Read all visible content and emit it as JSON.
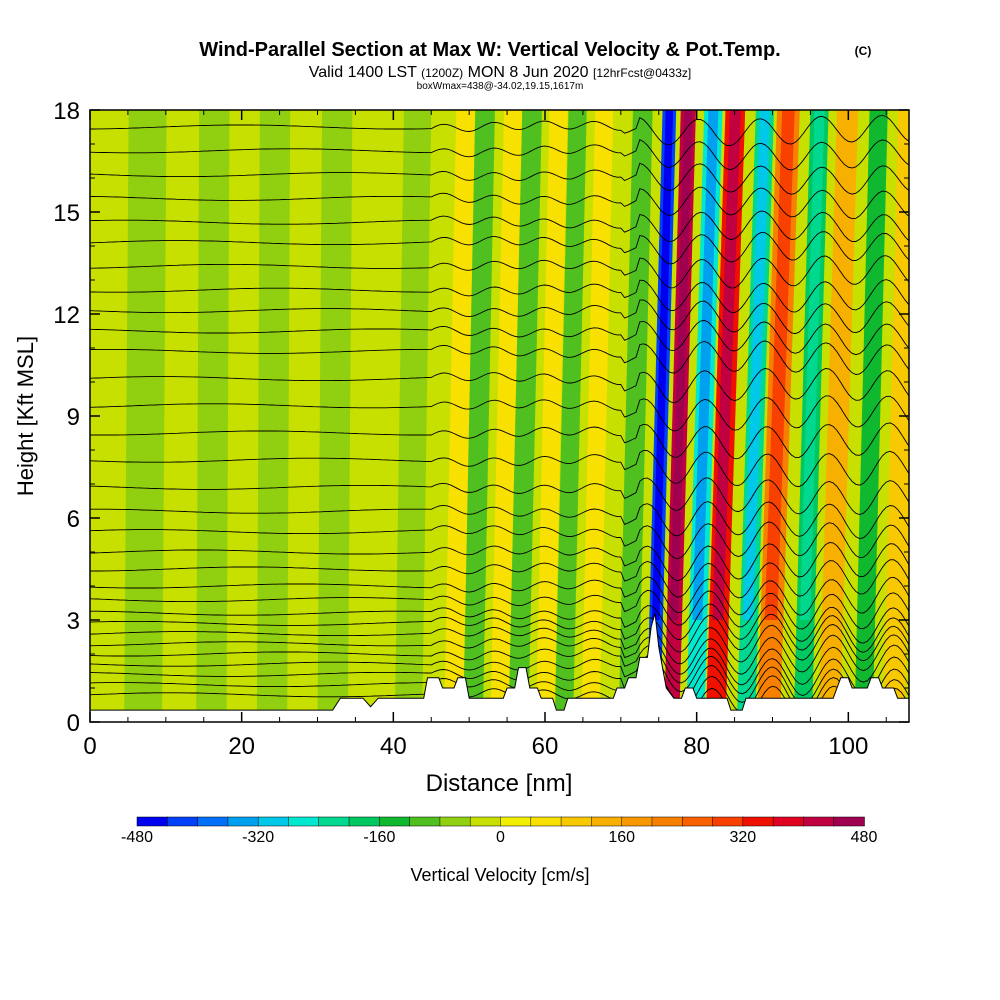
{
  "header": {
    "title": "Wind-Parallel Section at Max W: Vertical Velocity & Pot.Temp.",
    "copyright": "(C)",
    "valid_prefix": "Valid 1400 LST",
    "valid_utc": "(1200Z)",
    "valid_date": "MON 8 Jun 2020",
    "forecast": "[12hrFcst@0433z]",
    "box_info": "boxWmax=438@-34.02,19.15,1617m"
  },
  "chart_data": {
    "type": "heatmap",
    "title": "Wind-Parallel Section at Max W: Vertical Velocity & Pot.Temp.",
    "xlabel": "Distance [nm]",
    "ylabel": "Height [Kft MSL]",
    "xlim": [
      0,
      108
    ],
    "ylim": [
      0,
      18
    ],
    "x_ticks": [
      "0",
      "20",
      "40",
      "60",
      "80",
      "100"
    ],
    "x_tick_values": [
      0,
      20,
      40,
      60,
      80,
      100
    ],
    "y_ticks": [
      "0",
      "3",
      "6",
      "9",
      "12",
      "15",
      "18"
    ],
    "y_tick_values": [
      0,
      3,
      6,
      9,
      12,
      15,
      18
    ],
    "colorbar": {
      "label": "Vertical Velocity [cm/s]",
      "min": -480,
      "max": 480,
      "step": 40,
      "tick_labels": [
        "-480",
        "-320",
        "-160",
        "0",
        "160",
        "320",
        "480"
      ],
      "tick_values": [
        -480,
        -320,
        -160,
        0,
        160,
        320,
        480
      ],
      "colors": [
        "#0000f0",
        "#0040f8",
        "#0070f8",
        "#00a0f0",
        "#00c8e8",
        "#00e8d0",
        "#00d890",
        "#00c860",
        "#10b830",
        "#50c020",
        "#90d010",
        "#c8e000",
        "#f0f000",
        "#f8e000",
        "#f8c800",
        "#f8b000",
        "#f89800",
        "#f88000",
        "#f86000",
        "#f84000",
        "#f01000",
        "#e00020",
        "#c00040",
        "#a00050"
      ]
    },
    "series": [
      {
        "description": "vertical velocity bands",
        "bands": [
          {
            "x": 7,
            "w": 2.5,
            "tilt": 0.3,
            "value": -70
          },
          {
            "x": 16,
            "w": 2.0,
            "tilt": 0.2,
            "value": -55
          },
          {
            "x": 24,
            "w": 2.0,
            "tilt": 0.2,
            "value": -60
          },
          {
            "x": 32,
            "w": 2.0,
            "tilt": 0.3,
            "value": -45
          },
          {
            "x": 42,
            "w": 1.8,
            "tilt": 0.6,
            "value": -55
          },
          {
            "x": 48,
            "w": 1.3,
            "tilt": 0.8,
            "value": 60
          },
          {
            "x": 50.5,
            "w": 1.3,
            "tilt": 0.8,
            "value": -110
          },
          {
            "x": 54,
            "w": 1.2,
            "tilt": 0.9,
            "value": 50
          },
          {
            "x": 56.5,
            "w": 1.3,
            "tilt": 0.9,
            "value": -100
          },
          {
            "x": 60,
            "w": 1.2,
            "tilt": 0.9,
            "value": 50
          },
          {
            "x": 62.5,
            "w": 1.2,
            "tilt": 0.9,
            "value": -90
          },
          {
            "x": 66,
            "w": 1.2,
            "tilt": 0.9,
            "value": 40
          },
          {
            "x": 71,
            "w": 1.3,
            "tilt": 0.95,
            "value": -100
          },
          {
            "x": 74.3,
            "w": 0.9,
            "tilt": 1.05,
            "value": -440
          },
          {
            "x": 76.7,
            "w": 1.0,
            "tilt": 1.1,
            "value": 400
          },
          {
            "x": 79.8,
            "w": 1.2,
            "tilt": 1.2,
            "value": -280
          },
          {
            "x": 82.5,
            "w": 1.3,
            "tilt": 1.3,
            "value": 330
          },
          {
            "x": 86.5,
            "w": 1.2,
            "tilt": 1.25,
            "value": -230
          },
          {
            "x": 89.5,
            "w": 1.5,
            "tilt": 1.3,
            "value": 210
          },
          {
            "x": 94,
            "w": 1.2,
            "tilt": 1.1,
            "value": -180
          },
          {
            "x": 97.5,
            "w": 1.4,
            "tilt": 1.2,
            "value": 150
          },
          {
            "x": 102,
            "w": 1.2,
            "tilt": 1.0,
            "value": -140
          },
          {
            "x": 106,
            "w": 1.4,
            "tilt": 1.0,
            "value": 80
          }
        ]
      },
      {
        "description": "potential temperature isentrope base heights",
        "heights_kft": [
          0.8,
          1.1,
          1.4,
          1.7,
          2.0,
          2.3,
          2.6,
          2.9,
          3.2,
          3.6,
          4.0,
          4.5,
          5.0,
          5.6,
          6.2,
          6.9,
          7.7,
          8.5,
          9.3,
          10.1,
          10.9,
          11.5,
          12.1,
          12.7,
          13.4,
          14.1,
          14.7,
          15.4,
          16.1,
          16.8,
          17.5
        ]
      }
    ],
    "terrain_profile_kft": [
      [
        0,
        0.35
      ],
      [
        32,
        0.35
      ],
      [
        33,
        0.7
      ],
      [
        36,
        0.7
      ],
      [
        37,
        0.45
      ],
      [
        38,
        0.7
      ],
      [
        44,
        0.7
      ],
      [
        44.5,
        1.3
      ],
      [
        46,
        1.3
      ],
      [
        46.5,
        1.0
      ],
      [
        48,
        1.0
      ],
      [
        48.5,
        1.3
      ],
      [
        49.5,
        1.3
      ],
      [
        50,
        0.7
      ],
      [
        54.5,
        0.7
      ],
      [
        55,
        1.0
      ],
      [
        56,
        1.0
      ],
      [
        56.5,
        1.6
      ],
      [
        57.5,
        1.6
      ],
      [
        58,
        1.0
      ],
      [
        59,
        1.0
      ],
      [
        59.5,
        0.7
      ],
      [
        61,
        0.7
      ],
      [
        61.5,
        0.35
      ],
      [
        62.5,
        0.35
      ],
      [
        63,
        0.7
      ],
      [
        69,
        0.7
      ],
      [
        69.5,
        1.0
      ],
      [
        70.5,
        1.0
      ],
      [
        71,
        1.3
      ],
      [
        72,
        1.3
      ],
      [
        72.5,
        1.9
      ],
      [
        73.5,
        1.9
      ],
      [
        74,
        2.8
      ],
      [
        74.5,
        3.2
      ],
      [
        75,
        2.2
      ],
      [
        75.5,
        1.6
      ],
      [
        76,
        1.0
      ],
      [
        77,
        0.7
      ],
      [
        78,
        0.7
      ],
      [
        78.5,
        1.0
      ],
      [
        79.5,
        1.0
      ],
      [
        80,
        0.7
      ],
      [
        84,
        0.7
      ],
      [
        84.5,
        0.35
      ],
      [
        86,
        0.35
      ],
      [
        86.5,
        0.7
      ],
      [
        98,
        0.7
      ],
      [
        98.5,
        1.0
      ],
      [
        99,
        1.3
      ],
      [
        100,
        1.3
      ],
      [
        100.5,
        1.0
      ],
      [
        102.5,
        1.0
      ],
      [
        103,
        1.3
      ],
      [
        104,
        1.3
      ],
      [
        104.5,
        1.0
      ],
      [
        106,
        1.0
      ],
      [
        106.5,
        0.7
      ],
      [
        108,
        0.7
      ]
    ]
  }
}
